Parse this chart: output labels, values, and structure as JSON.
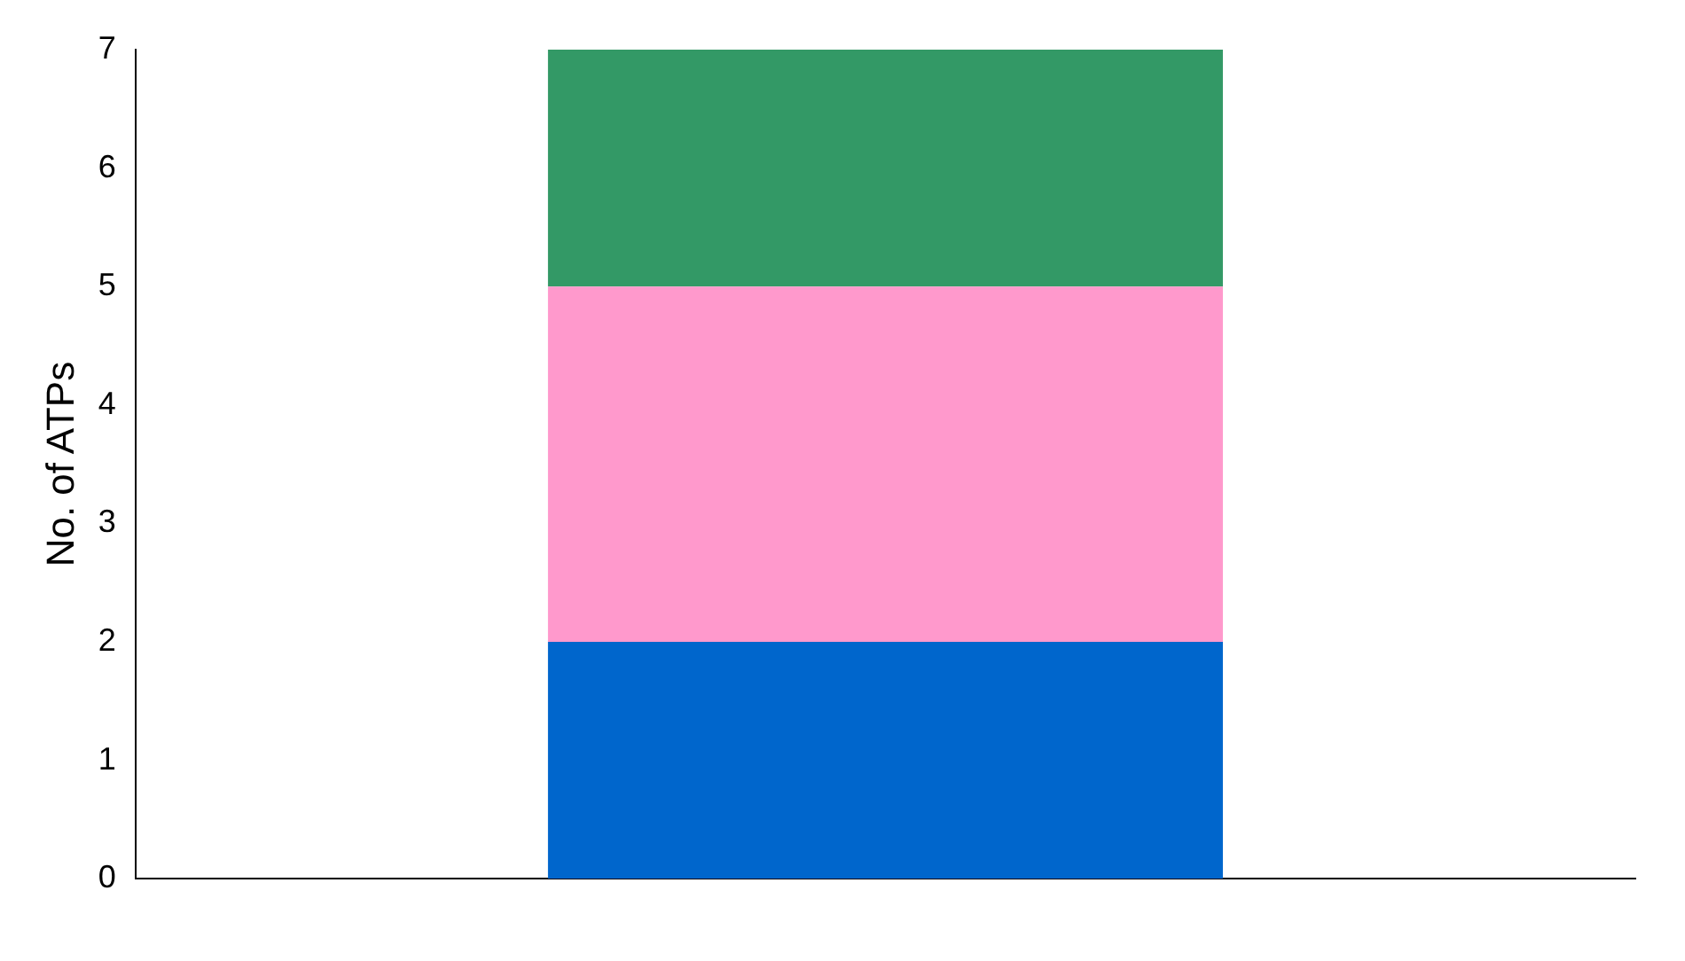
{
  "chart_data": {
    "type": "bar",
    "stacked": true,
    "categories": [
      null
    ],
    "ylabel": "No. of ATPs",
    "ylim": [
      0,
      7
    ],
    "yticks": [
      0,
      1,
      2,
      3,
      4,
      5,
      6,
      7
    ],
    "grid": false,
    "legend": false,
    "series": [
      {
        "color": "#0066cc",
        "values": [
          2
        ]
      },
      {
        "color": "#ff99cc",
        "values": [
          3
        ]
      },
      {
        "color": "#339966",
        "values": [
          2
        ]
      }
    ]
  }
}
